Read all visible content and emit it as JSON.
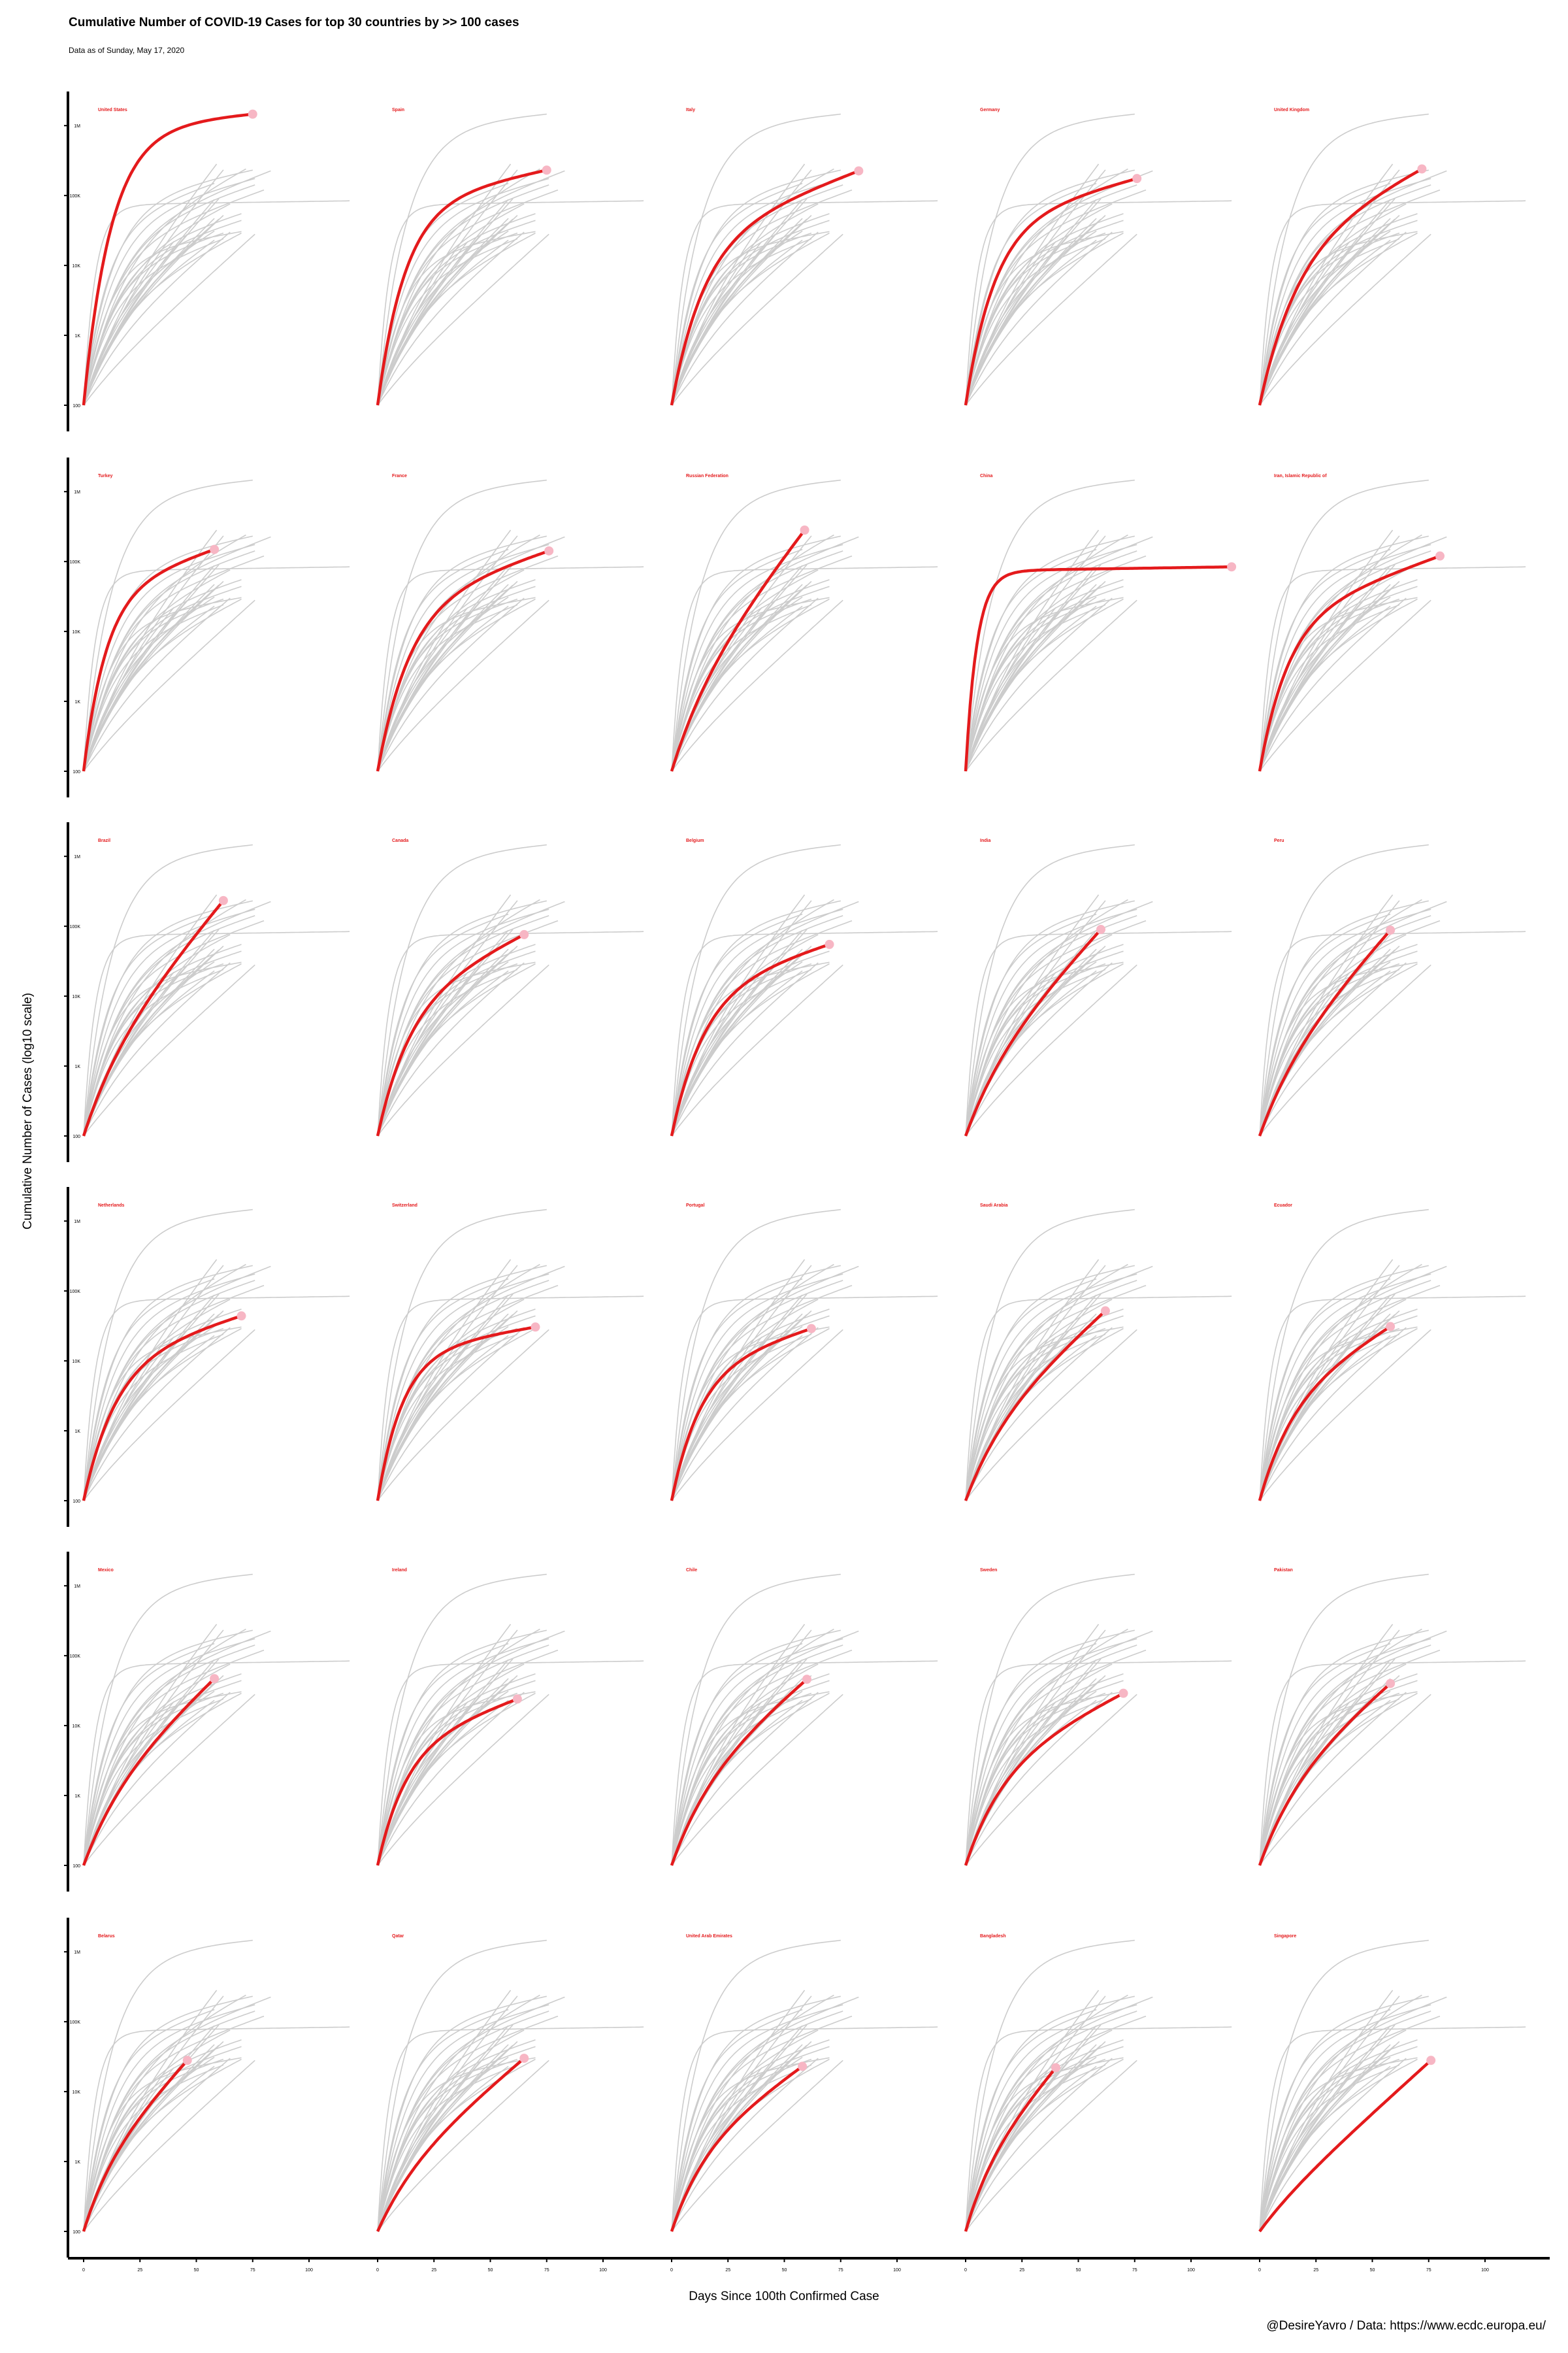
{
  "title": "Cumulative Number of COVID-19 Cases for top 30 countries by >> 100 cases",
  "subtitle": "Data as of Sunday, May 17, 2020",
  "xlabel": "Days Since 100th Confirmed Case",
  "ylabel": "Cumulative Number of Cases (log10 scale)",
  "caption": "@DesireYavro / Data: https://www.ecdc.europa.eu/",
  "colors": {
    "highlight": "#e41a1c",
    "endpoint": "#f7b6c4",
    "background_lines": "#cccccc",
    "axis": "#000000"
  },
  "chart_data": {
    "type": "line",
    "layout": "small-multiples 6x5",
    "y_scale": "log10",
    "ylim": [
      100,
      2000000
    ],
    "xlim": [
      0,
      120
    ],
    "y_ticks": [
      100,
      1000,
      10000,
      100000,
      1000000
    ],
    "y_tick_labels": [
      "100",
      "1K",
      "10K",
      "100K",
      "1M"
    ],
    "x_ticks": [
      0,
      25,
      50,
      75,
      100
    ],
    "x_tick_labels": [
      "0",
      "25",
      "50",
      "75",
      "100"
    ],
    "highlight_color": "#e41a1c",
    "series": [
      {
        "name": "United States",
        "days": 75,
        "final": 1460000,
        "shape": 0.95,
        "rate": 0.082
      },
      {
        "name": "Spain",
        "days": 75,
        "final": 231000,
        "shape": 0.85,
        "rate": 0.082
      },
      {
        "name": "Italy",
        "days": 83,
        "final": 225000,
        "shape": 0.7,
        "rate": 0.07
      },
      {
        "name": "Germany",
        "days": 76,
        "final": 175000,
        "shape": 0.8,
        "rate": 0.078
      },
      {
        "name": "United Kingdom",
        "days": 72,
        "final": 240000,
        "shape": 0.65,
        "rate": 0.06
      },
      {
        "name": "Turkey",
        "days": 58,
        "final": 149000,
        "shape": 0.8,
        "rate": 0.1
      },
      {
        "name": "France",
        "days": 76,
        "final": 142000,
        "shape": 0.75,
        "rate": 0.07
      },
      {
        "name": "Russian Federation",
        "days": 59,
        "final": 282000,
        "shape": 0.3,
        "rate": 0.06
      },
      {
        "name": "China",
        "days": 118,
        "final": 84000,
        "shape": 0.98,
        "rate": 0.2
      },
      {
        "name": "Iran, Islamic Republic of",
        "days": 80,
        "final": 120000,
        "shape": 0.7,
        "rate": 0.08
      },
      {
        "name": "Brazil",
        "days": 62,
        "final": 233000,
        "shape": 0.3,
        "rate": 0.06
      },
      {
        "name": "Canada",
        "days": 65,
        "final": 76000,
        "shape": 0.65,
        "rate": 0.07
      },
      {
        "name": "Belgium",
        "days": 70,
        "final": 55000,
        "shape": 0.75,
        "rate": 0.07
      },
      {
        "name": "India",
        "days": 60,
        "final": 90000,
        "shape": 0.3,
        "rate": 0.06
      },
      {
        "name": "Peru",
        "days": 58,
        "final": 88000,
        "shape": 0.3,
        "rate": 0.06
      },
      {
        "name": "Netherlands",
        "days": 70,
        "final": 44000,
        "shape": 0.75,
        "rate": 0.07
      },
      {
        "name": "Switzerland",
        "days": 70,
        "final": 30500,
        "shape": 0.85,
        "rate": 0.09
      },
      {
        "name": "Portugal",
        "days": 62,
        "final": 29000,
        "shape": 0.75,
        "rate": 0.08
      },
      {
        "name": "Saudi Arabia",
        "days": 62,
        "final": 52000,
        "shape": 0.35,
        "rate": 0.06
      },
      {
        "name": "Ecuador",
        "days": 58,
        "final": 31000,
        "shape": 0.55,
        "rate": 0.07
      },
      {
        "name": "Mexico",
        "days": 58,
        "final": 47000,
        "shape": 0.35,
        "rate": 0.06
      },
      {
        "name": "Ireland",
        "days": 62,
        "final": 24000,
        "shape": 0.7,
        "rate": 0.08
      },
      {
        "name": "Chile",
        "days": 60,
        "final": 46000,
        "shape": 0.4,
        "rate": 0.06
      },
      {
        "name": "Sweden",
        "days": 70,
        "final": 29000,
        "shape": 0.55,
        "rate": 0.06
      },
      {
        "name": "Pakistan",
        "days": 58,
        "final": 40000,
        "shape": 0.4,
        "rate": 0.06
      },
      {
        "name": "Belarus",
        "days": 46,
        "final": 28000,
        "shape": 0.35,
        "rate": 0.08
      },
      {
        "name": "Qatar",
        "days": 65,
        "final": 30000,
        "shape": 0.3,
        "rate": 0.06
      },
      {
        "name": "United Arab Emirates",
        "days": 58,
        "final": 23000,
        "shape": 0.45,
        "rate": 0.07
      },
      {
        "name": "Bangladesh",
        "days": 40,
        "final": 22000,
        "shape": 0.35,
        "rate": 0.09
      },
      {
        "name": "Singapore",
        "days": 76,
        "final": 28000,
        "shape": 0.1,
        "rate": 0.06
      }
    ]
  }
}
